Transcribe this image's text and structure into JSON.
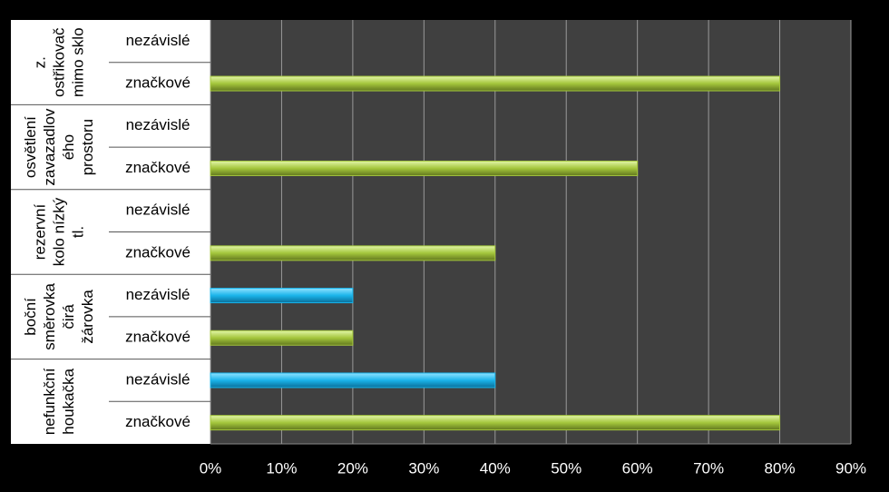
{
  "chart_data": {
    "type": "grouped-bar",
    "groups": [
      {
        "label": [
          "z.",
          "ostřikovač",
          "mimo sklo"
        ],
        "categories": [
          "nezávislé",
          "značkové"
        ],
        "values": [
          0,
          80
        ]
      },
      {
        "label": [
          "osvětlení",
          "zavazadlov",
          "ého",
          "prostoru"
        ],
        "categories": [
          "nezávislé",
          "značkové"
        ],
        "values": [
          0,
          60
        ]
      },
      {
        "label": [
          "rezervní",
          "kolo nízký",
          "tl."
        ],
        "categories": [
          "nezávislé",
          "značkové"
        ],
        "values": [
          0,
          40
        ]
      },
      {
        "label": [
          "boční",
          "směrovka",
          "čirá",
          "žárovka"
        ],
        "categories": [
          "nezávislé",
          "značkové"
        ],
        "values": [
          20,
          20
        ]
      },
      {
        "label": [
          "nefunkční",
          "houkačka"
        ],
        "categories": [
          "nezávislé",
          "značkové"
        ],
        "values": [
          40,
          80
        ]
      }
    ],
    "bar_colors": [
      "#1ab4ea",
      "#a4c63c"
    ],
    "xlim": [
      0,
      90
    ],
    "xticks": [
      {
        "value": 0,
        "label": "0%"
      },
      {
        "value": 10,
        "label": "10%"
      },
      {
        "value": 20,
        "label": "20%"
      },
      {
        "value": 30,
        "label": "30%"
      },
      {
        "value": 40,
        "label": "40%"
      },
      {
        "value": 50,
        "label": "50%"
      },
      {
        "value": 60,
        "label": "60%"
      },
      {
        "value": 70,
        "label": "70%"
      },
      {
        "value": 80,
        "label": "80%"
      },
      {
        "value": 90,
        "label": "90%"
      }
    ],
    "grid": true
  }
}
